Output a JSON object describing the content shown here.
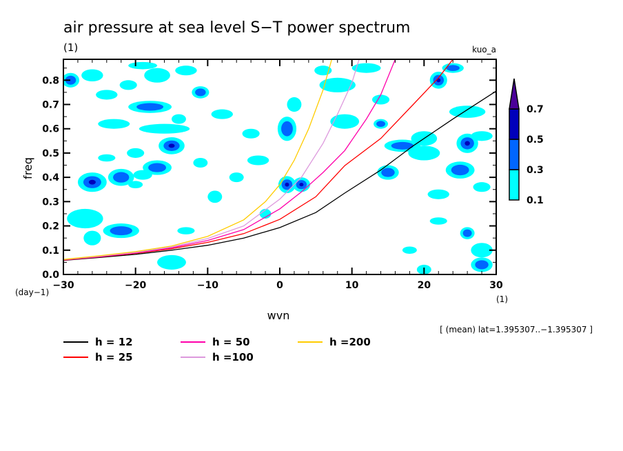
{
  "chart_data": {
    "type": "contour",
    "title": "air pressure at sea level S−T power spectrum",
    "subtitle_left": "(1)",
    "subtitle_right": "kuo_a",
    "xlabel": "wvn",
    "ylabel": "freq",
    "x_unit": "(1)",
    "y_unit": "(day−1)",
    "xlim": [
      -30,
      30
    ],
    "ylim": [
      0,
      0.886
    ],
    "x_ticks": [
      -30,
      -20,
      -10,
      0,
      10,
      20,
      30
    ],
    "x_tick_labels": [
      "−30",
      "−20",
      "−10",
      "0",
      "10",
      "20",
      "30"
    ],
    "y_ticks": [
      0.0,
      0.1,
      0.2,
      0.3,
      0.4,
      0.5,
      0.6,
      0.7,
      0.8
    ],
    "y_tick_labels": [
      "0.0",
      "0.1",
      "0.2",
      "0.3",
      "0.4",
      "0.5",
      "0.6",
      "0.7",
      "0.8"
    ],
    "annotation": "[ (mean) lat=1.395307..−1.395307 ]",
    "colorbar": {
      "levels": [
        0.1,
        0.3,
        0.5,
        0.7
      ],
      "level_labels": [
        "0.1",
        "0.3",
        "0.5",
        "0.7"
      ],
      "colors": [
        "#00ffff",
        "#0066ff",
        "#0000bb",
        "#4b0099"
      ]
    },
    "series": [
      {
        "name": "h = 12",
        "color": "#000000",
        "x": [
          -30,
          -25,
          -20,
          -15,
          -10,
          -5,
          0,
          5,
          9,
          14,
          18.5,
          24,
          30
        ],
        "y": [
          0.058,
          0.07,
          0.083,
          0.1,
          0.12,
          0.15,
          0.193,
          0.255,
          0.335,
          0.43,
          0.53,
          0.64,
          0.755
        ]
      },
      {
        "name": "h = 25",
        "color": "#ff0000",
        "x": [
          -30,
          -25,
          -20,
          -15,
          -10,
          -5,
          0,
          5,
          9,
          14,
          18.5,
          22,
          24
        ],
        "y": [
          0.059,
          0.072,
          0.087,
          0.106,
          0.132,
          0.168,
          0.227,
          0.32,
          0.448,
          0.56,
          0.7,
          0.81,
          0.886
        ]
      },
      {
        "name": "h = 50",
        "color": "#ff00aa",
        "x": [
          -30,
          -25,
          -20,
          -15,
          -10,
          -5,
          0,
          3,
          6,
          9,
          12,
          14,
          16
        ],
        "y": [
          0.06,
          0.073,
          0.089,
          0.11,
          0.14,
          0.185,
          0.27,
          0.34,
          0.42,
          0.51,
          0.64,
          0.74,
          0.886
        ]
      },
      {
        "name": "h =100",
        "color": "#dd99dd",
        "x": [
          -30,
          -25,
          -20,
          -15,
          -10,
          -5,
          0,
          3,
          6,
          8,
          10,
          11
        ],
        "y": [
          0.061,
          0.075,
          0.091,
          0.113,
          0.148,
          0.2,
          0.31,
          0.4,
          0.54,
          0.66,
          0.79,
          0.886
        ]
      },
      {
        "name": "h =200",
        "color": "#ffcc00",
        "x": [
          -30,
          -25,
          -20,
          -15,
          -10,
          -5,
          -2,
          0,
          2,
          4,
          6,
          7.2
        ],
        "y": [
          0.062,
          0.077,
          0.094,
          0.117,
          0.157,
          0.225,
          0.3,
          0.37,
          0.47,
          0.6,
          0.76,
          0.886
        ]
      }
    ],
    "contour_patches": [
      {
        "x": -29,
        "y": 0.8,
        "rx": 1.2,
        "ry": 0.03,
        "level": 2
      },
      {
        "x": -26,
        "y": 0.82,
        "rx": 1.5,
        "ry": 0.025,
        "level": 1
      },
      {
        "x": -21,
        "y": 0.78,
        "rx": 1.2,
        "ry": 0.02,
        "level": 1
      },
      {
        "x": -19,
        "y": 0.86,
        "rx": 2.0,
        "ry": 0.015,
        "level": 1
      },
      {
        "x": -17,
        "y": 0.82,
        "rx": 1.8,
        "ry": 0.03,
        "level": 1
      },
      {
        "x": -13,
        "y": 0.84,
        "rx": 1.5,
        "ry": 0.02,
        "level": 1
      },
      {
        "x": -11,
        "y": 0.75,
        "rx": 1.2,
        "ry": 0.025,
        "level": 2
      },
      {
        "x": -24,
        "y": 0.74,
        "rx": 1.5,
        "ry": 0.02,
        "level": 1
      },
      {
        "x": -18,
        "y": 0.69,
        "rx": 3.0,
        "ry": 0.025,
        "level": 2
      },
      {
        "x": -23,
        "y": 0.62,
        "rx": 2.2,
        "ry": 0.02,
        "level": 1
      },
      {
        "x": -14,
        "y": 0.64,
        "rx": 1.0,
        "ry": 0.02,
        "level": 1
      },
      {
        "x": -16,
        "y": 0.6,
        "rx": 3.5,
        "ry": 0.02,
        "level": 1
      },
      {
        "x": -15,
        "y": 0.53,
        "rx": 1.8,
        "ry": 0.035,
        "level": 3
      },
      {
        "x": -20,
        "y": 0.5,
        "rx": 1.2,
        "ry": 0.02,
        "level": 1
      },
      {
        "x": -26,
        "y": 0.38,
        "rx": 2.0,
        "ry": 0.04,
        "level": 3
      },
      {
        "x": -22,
        "y": 0.4,
        "rx": 1.8,
        "ry": 0.035,
        "level": 2
      },
      {
        "x": -17,
        "y": 0.44,
        "rx": 2.0,
        "ry": 0.03,
        "level": 2
      },
      {
        "x": -19,
        "y": 0.41,
        "rx": 1.3,
        "ry": 0.02,
        "level": 1
      },
      {
        "x": -24,
        "y": 0.48,
        "rx": 1.2,
        "ry": 0.015,
        "level": 1
      },
      {
        "x": -27,
        "y": 0.23,
        "rx": 2.5,
        "ry": 0.04,
        "level": 1
      },
      {
        "x": -22,
        "y": 0.18,
        "rx": 2.5,
        "ry": 0.03,
        "level": 2
      },
      {
        "x": -26,
        "y": 0.15,
        "rx": 1.2,
        "ry": 0.03,
        "level": 1
      },
      {
        "x": -13,
        "y": 0.18,
        "rx": 1.2,
        "ry": 0.015,
        "level": 1
      },
      {
        "x": -15,
        "y": 0.05,
        "rx": 2.0,
        "ry": 0.03,
        "level": 1
      },
      {
        "x": -20,
        "y": 0.37,
        "rx": 1.0,
        "ry": 0.015,
        "level": 1
      },
      {
        "x": -11,
        "y": 0.46,
        "rx": 1.0,
        "ry": 0.02,
        "level": 1
      },
      {
        "x": -9,
        "y": 0.32,
        "rx": 1.0,
        "ry": 0.025,
        "level": 1
      },
      {
        "x": -6,
        "y": 0.4,
        "rx": 1.0,
        "ry": 0.02,
        "level": 1
      },
      {
        "x": -3,
        "y": 0.47,
        "rx": 1.5,
        "ry": 0.02,
        "level": 1
      },
      {
        "x": -8,
        "y": 0.66,
        "rx": 1.5,
        "ry": 0.02,
        "level": 1
      },
      {
        "x": -4,
        "y": 0.58,
        "rx": 1.2,
        "ry": 0.02,
        "level": 1
      },
      {
        "x": 1,
        "y": 0.6,
        "rx": 1.3,
        "ry": 0.05,
        "level": 2
      },
      {
        "x": 2,
        "y": 0.7,
        "rx": 1.0,
        "ry": 0.03,
        "level": 1
      },
      {
        "x": 1,
        "y": 0.37,
        "rx": 1.2,
        "ry": 0.035,
        "level": 3
      },
      {
        "x": 3,
        "y": 0.37,
        "rx": 1.2,
        "ry": 0.03,
        "level": 3
      },
      {
        "x": -2,
        "y": 0.25,
        "rx": 0.8,
        "ry": 0.02,
        "level": 1
      },
      {
        "x": 8,
        "y": 0.78,
        "rx": 2.5,
        "ry": 0.03,
        "level": 1
      },
      {
        "x": 12,
        "y": 0.85,
        "rx": 2.0,
        "ry": 0.02,
        "level": 1
      },
      {
        "x": 9,
        "y": 0.63,
        "rx": 2.0,
        "ry": 0.03,
        "level": 1
      },
      {
        "x": 14,
        "y": 0.72,
        "rx": 1.2,
        "ry": 0.02,
        "level": 1
      },
      {
        "x": 17,
        "y": 0.53,
        "rx": 2.5,
        "ry": 0.025,
        "level": 2
      },
      {
        "x": 20,
        "y": 0.56,
        "rx": 1.8,
        "ry": 0.03,
        "level": 1
      },
      {
        "x": 22,
        "y": 0.8,
        "rx": 1.2,
        "ry": 0.035,
        "level": 3
      },
      {
        "x": 24,
        "y": 0.85,
        "rx": 1.5,
        "ry": 0.02,
        "level": 2
      },
      {
        "x": 26,
        "y": 0.67,
        "rx": 2.5,
        "ry": 0.025,
        "level": 1
      },
      {
        "x": 28,
        "y": 0.57,
        "rx": 1.5,
        "ry": 0.02,
        "level": 1
      },
      {
        "x": 26,
        "y": 0.54,
        "rx": 1.5,
        "ry": 0.04,
        "level": 3
      },
      {
        "x": 25,
        "y": 0.43,
        "rx": 2.0,
        "ry": 0.035,
        "level": 2
      },
      {
        "x": 20,
        "y": 0.5,
        "rx": 2.2,
        "ry": 0.03,
        "level": 1
      },
      {
        "x": 15,
        "y": 0.42,
        "rx": 1.5,
        "ry": 0.03,
        "level": 2
      },
      {
        "x": 22,
        "y": 0.33,
        "rx": 1.5,
        "ry": 0.02,
        "level": 1
      },
      {
        "x": 28,
        "y": 0.36,
        "rx": 1.2,
        "ry": 0.02,
        "level": 1
      },
      {
        "x": 26,
        "y": 0.17,
        "rx": 1.0,
        "ry": 0.025,
        "level": 2
      },
      {
        "x": 28,
        "y": 0.1,
        "rx": 1.5,
        "ry": 0.03,
        "level": 1
      },
      {
        "x": 28,
        "y": 0.04,
        "rx": 1.5,
        "ry": 0.03,
        "level": 2
      },
      {
        "x": 22,
        "y": 0.22,
        "rx": 1.2,
        "ry": 0.015,
        "level": 1
      },
      {
        "x": 18,
        "y": 0.1,
        "rx": 1.0,
        "ry": 0.015,
        "level": 1
      },
      {
        "x": 20,
        "y": 0.02,
        "rx": 1.0,
        "ry": 0.02,
        "level": 1
      },
      {
        "x": 14,
        "y": 0.62,
        "rx": 1.0,
        "ry": 0.02,
        "level": 2
      },
      {
        "x": 6,
        "y": 0.84,
        "rx": 1.2,
        "ry": 0.02,
        "level": 1
      }
    ]
  }
}
